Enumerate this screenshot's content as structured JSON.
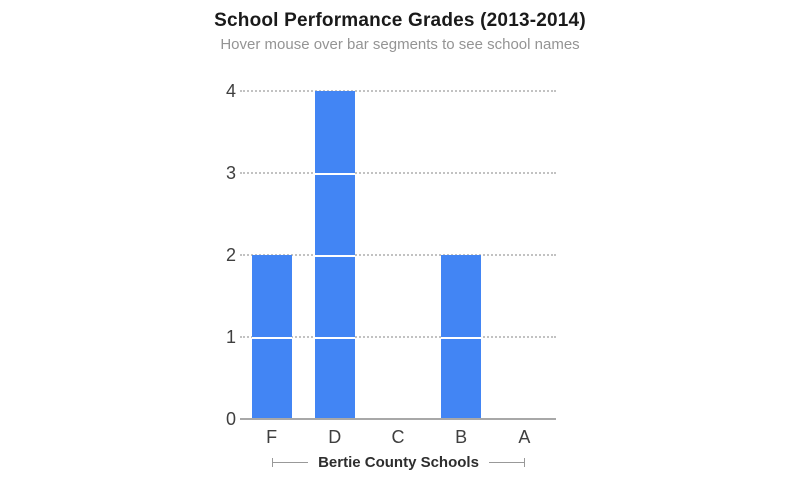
{
  "chart_data": {
    "type": "bar",
    "title": "School Performance Grades (2013-2014)",
    "subtitle": "Hover mouse over bar segments to see school names",
    "categories": [
      "F",
      "D",
      "C",
      "B",
      "A"
    ],
    "values": [
      2,
      4,
      0,
      2,
      0
    ],
    "xlabel": "Bertie County Schools",
    "ylabel": "",
    "ylim": [
      0,
      4
    ],
    "yticks": [
      0,
      1,
      2,
      3,
      4
    ],
    "grid": true,
    "legend": "none",
    "bar_style": "each bar is stacked from 1-unit segments separated by thin white dividers"
  },
  "colors": {
    "background": "#ffffff",
    "bar": "#4285f4",
    "segment_divider": "#ffffff",
    "title": "#1a1a1a",
    "subtitle": "#949494",
    "axis_label": "#3f3f3f",
    "axis_title": "#2e2e2e",
    "gridline": "#c2c2c2",
    "baseline": "#a8a8a8",
    "bracket": "#999999"
  }
}
